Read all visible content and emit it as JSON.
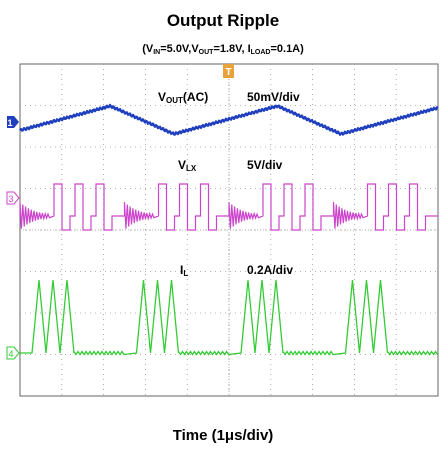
{
  "chart_data": {
    "type": "line",
    "title": "Output Ripple",
    "subtitle": {
      "vin_sym": "V",
      "vin_sub": "IN",
      "vin_val": "=5.0V,",
      "vout_sym": "V",
      "vout_sub": "OUT",
      "vout_val": "=1.8V,",
      "iload_sym": "I",
      "iload_sub": "LOAD",
      "iload_val": "=0.1A)",
      "open": "("
    },
    "xlabel": "Time (1μs/div)",
    "trigger_marker": "T",
    "grid": true,
    "divisions": {
      "x": 10,
      "y": 8
    },
    "series": [
      {
        "name_sym": "V",
        "name_sub": "OUT",
        "name_suffix": "(AC)",
        "scale": "50mV/div",
        "channel": "1",
        "color": "#1f3fbf",
        "shape": "ripple-triangle",
        "cycles": 2.5
      },
      {
        "name_sym": "V",
        "name_sub": "LX",
        "name_suffix": "",
        "scale": "5V/div",
        "channel": "3",
        "color": "#cc44cc",
        "shape": "switching-burst",
        "bursts": 4
      },
      {
        "name_sym": "I",
        "name_sub": "L",
        "name_suffix": "",
        "scale": "0.2A/div",
        "channel": "4",
        "color": "#33cc33",
        "shape": "triangular-pulses",
        "bursts": 4,
        "pulses_per_burst": 3
      }
    ]
  }
}
